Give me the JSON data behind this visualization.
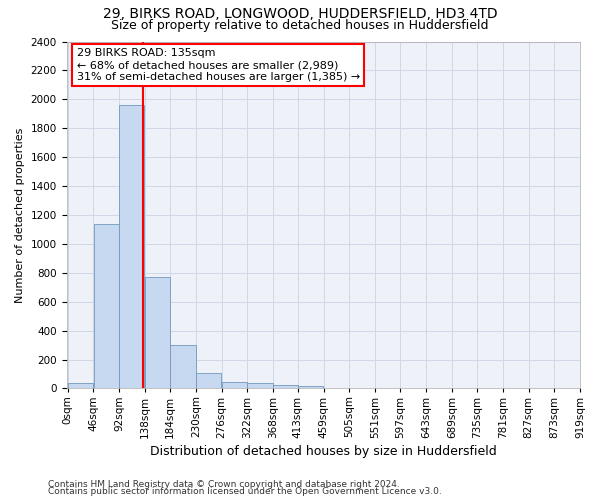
{
  "title1": "29, BIRKS ROAD, LONGWOOD, HUDDERSFIELD, HD3 4TD",
  "title2": "Size of property relative to detached houses in Huddersfield",
  "xlabel": "Distribution of detached houses by size in Huddersfield",
  "ylabel": "Number of detached properties",
  "bar_edges": [
    0,
    46,
    92,
    138,
    184,
    230,
    276,
    322,
    368,
    413,
    459,
    505,
    551,
    597,
    643,
    689,
    735,
    781,
    827,
    873,
    919
  ],
  "bar_heights": [
    35,
    1140,
    1960,
    770,
    300,
    105,
    45,
    38,
    25,
    15,
    0,
    0,
    0,
    0,
    0,
    0,
    0,
    0,
    0,
    0
  ],
  "bar_color": "#c6d9f0",
  "bar_edge_color": "#7098bf",
  "property_line_x": 135,
  "annotation_line1": "29 BIRKS ROAD: 135sqm",
  "annotation_line2": "← 68% of detached houses are smaller (2,989)",
  "annotation_line3": "31% of semi-detached houses are larger (1,385) →",
  "annotation_box_color": "white",
  "annotation_box_edge_color": "red",
  "vline_color": "red",
  "ylim": [
    0,
    2400
  ],
  "yticks": [
    0,
    200,
    400,
    600,
    800,
    1000,
    1200,
    1400,
    1600,
    1800,
    2000,
    2200,
    2400
  ],
  "tick_labels": [
    "0sqm",
    "46sqm",
    "92sqm",
    "138sqm",
    "184sqm",
    "230sqm",
    "276sqm",
    "322sqm",
    "368sqm",
    "413sqm",
    "459sqm",
    "505sqm",
    "551sqm",
    "597sqm",
    "643sqm",
    "689sqm",
    "735sqm",
    "781sqm",
    "827sqm",
    "873sqm",
    "919sqm"
  ],
  "footer1": "Contains HM Land Registry data © Crown copyright and database right 2024.",
  "footer2": "Contains public sector information licensed under the Open Government Licence v3.0.",
  "grid_color": "#d0d8e8",
  "bg_color": "#eef2f8",
  "title1_fontsize": 10,
  "title2_fontsize": 9,
  "xlabel_fontsize": 9,
  "ylabel_fontsize": 8,
  "tick_fontsize": 7.5,
  "annotation_fontsize": 8,
  "footer_fontsize": 6.5
}
